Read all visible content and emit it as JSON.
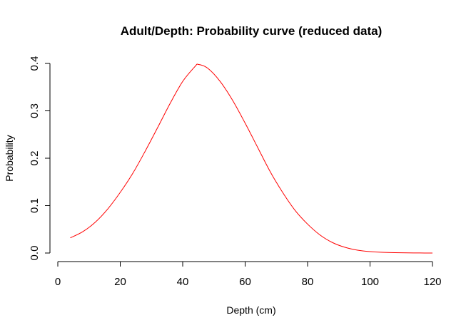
{
  "chart_data": {
    "type": "line",
    "title": "Adult/Depth: Probability curve (reduced data)",
    "xlabel": "Depth (cm)",
    "ylabel": "Probability",
    "xlim": [
      0,
      120
    ],
    "ylim": [
      0,
      0.4
    ],
    "x_ticks": [
      "0",
      "20",
      "40",
      "60",
      "80",
      "100",
      "120"
    ],
    "y_ticks": [
      "0.0",
      "0.1",
      "0.2",
      "0.3",
      "0.4"
    ],
    "grid": false,
    "series": [
      {
        "color": "#ff0000",
        "x": [
          4,
          8,
          12,
          16,
          20,
          24,
          28,
          32,
          36,
          40,
          44,
          45,
          48,
          52,
          56,
          60,
          64,
          68,
          72,
          76,
          80,
          84,
          88,
          92,
          96,
          100,
          104,
          108,
          112,
          116,
          120
        ],
        "y": [
          0.032,
          0.045,
          0.065,
          0.093,
          0.128,
          0.168,
          0.215,
          0.265,
          0.316,
          0.362,
          0.394,
          0.398,
          0.39,
          0.362,
          0.322,
          0.274,
          0.223,
          0.172,
          0.128,
          0.09,
          0.061,
          0.038,
          0.022,
          0.012,
          0.006,
          0.003,
          0.0015,
          0.0007,
          0.0003,
          0.0001,
          0.0
        ]
      }
    ]
  }
}
